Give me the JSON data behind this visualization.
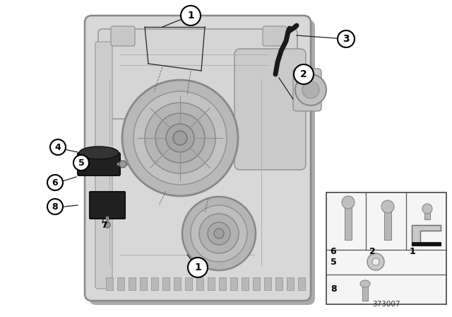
{
  "bg_color": "#ffffff",
  "part_number": "373007",
  "line_color": "#222222",
  "circle_bg": "#ffffff",
  "circle_border": "#000000",
  "body_light": "#d8d8d8",
  "body_mid": "#c0c0c0",
  "body_dark": "#a8a8a8",
  "body_edge": "#888888",
  "rubber_color": "#1a1a1a",
  "hook_color": "#1a1a1a",
  "table_bg": "#f5f5f5",
  "table_border": "#444444",
  "bolt_color": "#b8b8b8",
  "bolt_edge": "#888888"
}
